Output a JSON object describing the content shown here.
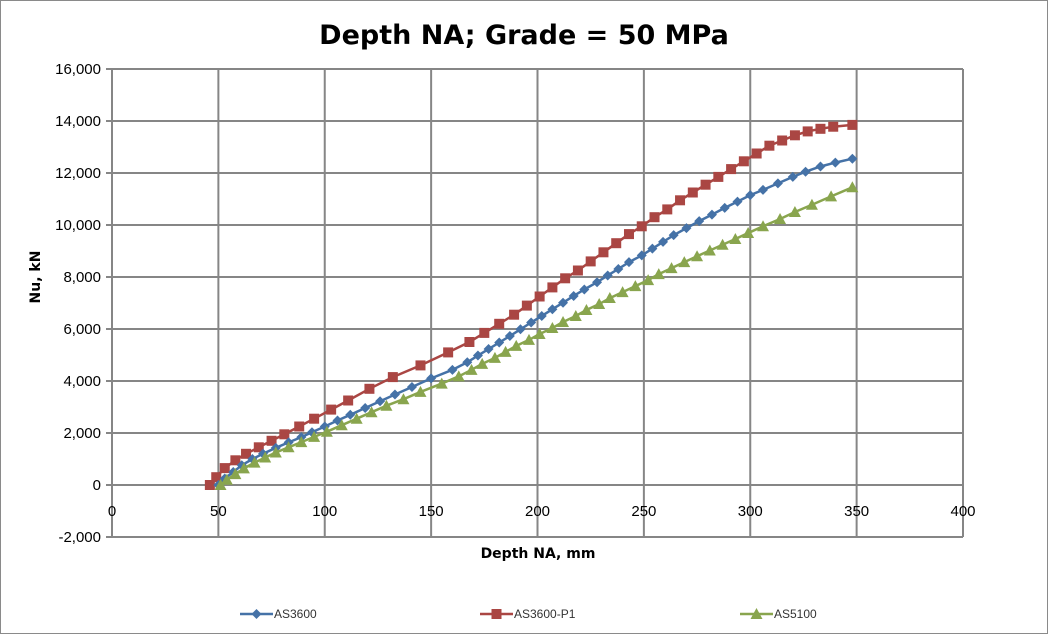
{
  "chart_data": {
    "type": "line",
    "title": "Depth NA; Grade = 50 MPa",
    "xlabel": "Depth NA, mm",
    "ylabel": "Nu, kN",
    "xlim": [
      0,
      400
    ],
    "ylim": [
      -2000,
      16000
    ],
    "x_ticks": [
      0,
      50,
      100,
      150,
      200,
      250,
      300,
      350,
      400
    ],
    "y_ticks": [
      -2000,
      0,
      2000,
      4000,
      6000,
      8000,
      10000,
      12000,
      14000,
      16000
    ],
    "x_tick_labels": [
      "0",
      "50",
      "100",
      "150",
      "200",
      "250",
      "300",
      "350",
      "400"
    ],
    "y_tick_labels": [
      "-2,000",
      "0",
      "2,000",
      "4,000",
      "6,000",
      "8,000",
      "10,000",
      "12,000",
      "14,000",
      "16,000"
    ],
    "grid": true,
    "legend_position": "bottom",
    "series": [
      {
        "name": "AS3600",
        "color": "#4572A7",
        "marker": "diamond",
        "x": [
          50,
          53,
          57,
          61,
          66,
          71,
          77,
          83,
          89,
          94,
          100,
          106,
          112,
          119,
          126,
          133,
          141,
          150,
          160,
          167,
          172,
          177,
          182,
          187,
          192,
          197,
          202,
          207,
          212,
          217,
          222,
          228,
          233,
          238,
          243,
          249,
          254,
          259,
          264,
          270,
          276,
          282,
          288,
          294,
          300,
          306,
          313,
          320,
          326,
          333,
          340,
          348
        ],
        "y": [
          0,
          250,
          500,
          760,
          1000,
          1200,
          1430,
          1640,
          1840,
          2030,
          2250,
          2480,
          2700,
          2960,
          3220,
          3480,
          3770,
          4100,
          4430,
          4720,
          4980,
          5230,
          5480,
          5730,
          5990,
          6250,
          6500,
          6760,
          7010,
          7270,
          7520,
          7800,
          8060,
          8310,
          8570,
          8830,
          9090,
          9350,
          9610,
          9880,
          10150,
          10400,
          10660,
          10900,
          11150,
          11350,
          11600,
          11850,
          12050,
          12250,
          12400,
          12550
        ]
      },
      {
        "name": "AS3600-P1",
        "color": "#AA4643",
        "marker": "square",
        "x": [
          46,
          49,
          53,
          58,
          63,
          69,
          75,
          81,
          88,
          95,
          103,
          111,
          121,
          132,
          145,
          158,
          168,
          175,
          182,
          189,
          195,
          201,
          207,
          213,
          219,
          225,
          231,
          237,
          243,
          249,
          255,
          261,
          267,
          273,
          279,
          285,
          291,
          297,
          303,
          309,
          315,
          321,
          327,
          333,
          339,
          348
        ],
        "y": [
          0,
          300,
          650,
          950,
          1200,
          1450,
          1700,
          1950,
          2250,
          2550,
          2900,
          3250,
          3700,
          4150,
          4600,
          5100,
          5500,
          5850,
          6200,
          6550,
          6900,
          7250,
          7600,
          7950,
          8250,
          8600,
          8950,
          9300,
          9650,
          9950,
          10300,
          10600,
          10950,
          11250,
          11550,
          11850,
          12150,
          12450,
          12750,
          13050,
          13250,
          13450,
          13600,
          13700,
          13780,
          13850
        ]
      },
      {
        "name": "AS5100",
        "color": "#89A54E",
        "marker": "triangle",
        "x": [
          51,
          54,
          58,
          62,
          67,
          72,
          77,
          83,
          89,
          95,
          101,
          108,
          115,
          122,
          129,
          137,
          145,
          155,
          163,
          169,
          174,
          180,
          185,
          190,
          196,
          201,
          207,
          212,
          218,
          223,
          229,
          234,
          240,
          246,
          252,
          257,
          263,
          269,
          275,
          281,
          287,
          293,
          299,
          306,
          314,
          321,
          329,
          338,
          348
        ],
        "y": [
          0,
          200,
          420,
          640,
          860,
          1060,
          1250,
          1450,
          1650,
          1850,
          2050,
          2300,
          2550,
          2800,
          3050,
          3300,
          3580,
          3900,
          4180,
          4430,
          4660,
          4890,
          5120,
          5350,
          5580,
          5810,
          6040,
          6270,
          6500,
          6730,
          6960,
          7190,
          7420,
          7650,
          7880,
          8110,
          8340,
          8570,
          8800,
          9020,
          9240,
          9460,
          9690,
          9950,
          10230,
          10500,
          10780,
          11100,
          11450
        ]
      }
    ]
  }
}
